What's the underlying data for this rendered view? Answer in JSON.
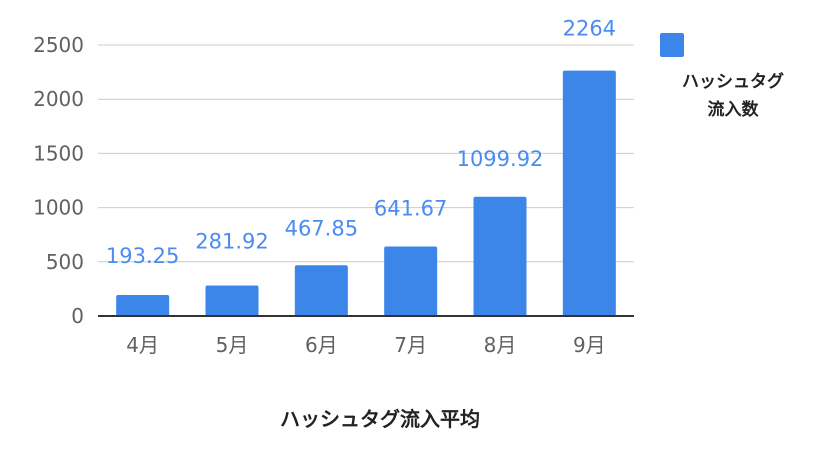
{
  "chart_data": {
    "type": "bar",
    "title": "ハッシュタグ流入平均",
    "categories": [
      "4月",
      "5月",
      "6月",
      "7月",
      "8月",
      "9月"
    ],
    "series": [
      {
        "name_lines": [
          "ハッシュタグ",
          "流入数"
        ],
        "values": [
          193.25,
          281.92,
          467.85,
          641.67,
          1099.92,
          2264
        ],
        "value_labels": [
          "193.25",
          "281.92",
          "467.85",
          "641.67",
          "1099.92",
          "2264"
        ],
        "color": "#3b86e8"
      }
    ],
    "y_ticks": [
      "0",
      "500",
      "1000",
      "1500",
      "2000",
      "2500"
    ],
    "ylim": [
      0,
      2500
    ],
    "grid": true,
    "legend_position": "top-right",
    "colors": {
      "bar": "#3b86e8",
      "data_label": "#4a8cf0",
      "gridline": "#cccccc",
      "axis": "#333333",
      "tick_text": "#616161",
      "title_text": "#222222"
    }
  }
}
